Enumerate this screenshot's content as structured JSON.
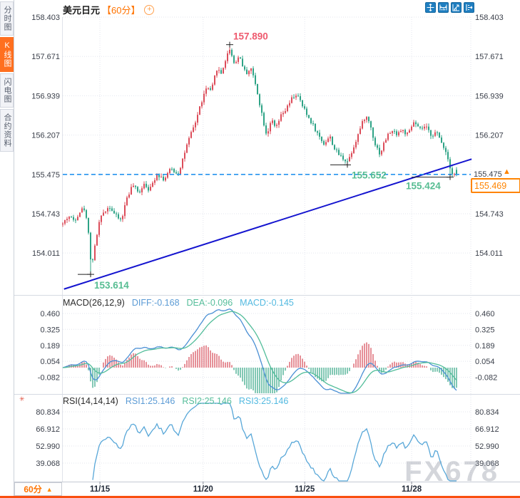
{
  "sidebar": {
    "tabs": [
      {
        "label": "分时图",
        "active": false
      },
      {
        "label": "K线图",
        "active": true
      },
      {
        "label": "闪电图",
        "active": false
      },
      {
        "label": "合约资料",
        "active": false
      }
    ]
  },
  "header": {
    "title": "美元日元",
    "interval_tag": "【60分】",
    "add_glyph": "+"
  },
  "toolbar": {
    "icons": [
      "pan-icon",
      "fit-horizontal-icon",
      "fit-vertical-icon",
      "exit-chart-icon"
    ]
  },
  "price_box": {
    "axis_price": "155.475",
    "arrow": "▲",
    "last_price": "155.469"
  },
  "footer": {
    "interval_button": {
      "label": "60分",
      "arrow": "▲"
    },
    "watermark": "FX678"
  },
  "chart_data": {
    "type": "candlestick",
    "symbol": "美元日元",
    "interval": "60分",
    "price_axis_ticks": [
      "158.403",
      "157.671",
      "156.939",
      "156.207",
      "155.475",
      "154.743",
      "154.011"
    ],
    "ylim": [
      153.25,
      158.45
    ],
    "x_axis_labels": [
      {
        "label": "11/15",
        "pos": 0.091
      },
      {
        "label": "11/20",
        "pos": 0.344
      },
      {
        "label": "11/25",
        "pos": 0.593
      },
      {
        "label": "11/28",
        "pos": 0.855
      }
    ],
    "last_price": 155.469,
    "support_line": {
      "price": 155.475,
      "style": "dashed"
    },
    "trend_line": {
      "t1": 0.003,
      "price1": 153.34,
      "t2": 1.002,
      "price2": 155.76
    },
    "annotations": [
      {
        "kind": "low",
        "label": "153.614",
        "price": 153.614,
        "t": 0.072
      },
      {
        "kind": "high",
        "label": "157.890",
        "price": 157.89,
        "t": 0.424
      },
      {
        "kind": "low",
        "label": "155.652",
        "price": 155.652,
        "t": 0.724
      },
      {
        "kind": "low",
        "label": "155.424",
        "price": 155.424,
        "t": 0.985
      }
    ],
    "price_path": [
      [
        0,
        154.55
      ],
      [
        0.014,
        154.7
      ],
      [
        0.029,
        154.62
      ],
      [
        0.043,
        154.78
      ],
      [
        0.054,
        154.85
      ],
      [
        0.065,
        154.45
      ],
      [
        0.072,
        153.75
      ],
      [
        0.08,
        154.05
      ],
      [
        0.091,
        154.55
      ],
      [
        0.105,
        154.8
      ],
      [
        0.12,
        154.88
      ],
      [
        0.134,
        154.7
      ],
      [
        0.149,
        154.62
      ],
      [
        0.163,
        155.05
      ],
      [
        0.178,
        155.28
      ],
      [
        0.192,
        155.12
      ],
      [
        0.207,
        155.32
      ],
      [
        0.221,
        155.18
      ],
      [
        0.239,
        155.5
      ],
      [
        0.257,
        155.38
      ],
      [
        0.275,
        155.58
      ],
      [
        0.293,
        155.48
      ],
      [
        0.308,
        155.85
      ],
      [
        0.322,
        156.15
      ],
      [
        0.337,
        156.45
      ],
      [
        0.351,
        156.8
      ],
      [
        0.366,
        157.1
      ],
      [
        0.377,
        157.0
      ],
      [
        0.391,
        157.45
      ],
      [
        0.402,
        157.35
      ],
      [
        0.413,
        157.6
      ],
      [
        0.424,
        157.82
      ],
      [
        0.435,
        157.55
      ],
      [
        0.449,
        157.68
      ],
      [
        0.464,
        157.35
      ],
      [
        0.478,
        157.45
      ],
      [
        0.493,
        157.05
      ],
      [
        0.507,
        156.55
      ],
      [
        0.518,
        156.2
      ],
      [
        0.529,
        156.5
      ],
      [
        0.54,
        156.32
      ],
      [
        0.554,
        156.55
      ],
      [
        0.569,
        156.7
      ],
      [
        0.583,
        156.9
      ],
      [
        0.594,
        156.97
      ],
      [
        0.605,
        156.8
      ],
      [
        0.62,
        156.58
      ],
      [
        0.634,
        156.42
      ],
      [
        0.649,
        156.2
      ],
      [
        0.663,
        156.05
      ],
      [
        0.678,
        156.18
      ],
      [
        0.692,
        155.92
      ],
      [
        0.707,
        155.8
      ],
      [
        0.724,
        155.72
      ],
      [
        0.739,
        156.0
      ],
      [
        0.754,
        156.3
      ],
      [
        0.768,
        156.56
      ],
      [
        0.779,
        156.45
      ],
      [
        0.793,
        156.05
      ],
      [
        0.806,
        155.85
      ],
      [
        0.819,
        156.12
      ],
      [
        0.833,
        156.28
      ],
      [
        0.848,
        156.24
      ],
      [
        0.862,
        156.3
      ],
      [
        0.877,
        156.2
      ],
      [
        0.891,
        156.45
      ],
      [
        0.906,
        156.3
      ],
      [
        0.92,
        156.36
      ],
      [
        0.935,
        156.22
      ],
      [
        0.949,
        156.25
      ],
      [
        0.96,
        156.1
      ],
      [
        0.971,
        155.95
      ],
      [
        0.98,
        155.72
      ],
      [
        0.989,
        155.5
      ],
      [
        1,
        155.469
      ]
    ],
    "macd": {
      "title": "MACD(26,12,9)",
      "diff_label": "DIFF:-0.168",
      "dea_label": "DEA:-0.096",
      "macd_label": "MACD:-0.145",
      "params": [
        26,
        12,
        9
      ],
      "current": {
        "diff": -0.168,
        "dea": -0.096,
        "macd": -0.145
      },
      "axis_ticks": [
        "0.460",
        "0.325",
        "0.189",
        "0.054",
        "-0.082"
      ]
    },
    "rsi": {
      "title": "RSI(14,14,14)",
      "labels": [
        "RSI1:25.146",
        "RSI2:25.146",
        "RSI3:25.146"
      ],
      "params": [
        14,
        14,
        14
      ],
      "current": {
        "rsi1": 25.146,
        "rsi2": 25.146,
        "rsi3": 25.146
      },
      "axis_ticks": [
        "80.834",
        "66.912",
        "52.990",
        "39.068"
      ]
    },
    "colors": {
      "up_candle": "#dc4d5a",
      "down_candle": "#2ea386",
      "annotation_high": "#ee5a6e",
      "annotation_low": "#57bd92",
      "support_line": "#2493ee",
      "trend_line": "#1414cf",
      "diff_line": "#4a8fd4",
      "dea_line": "#52bd9a",
      "macd_bar_pos": "#d9505c",
      "macd_bar_neg": "#3aa98a",
      "rsi_line": "#58a7d8",
      "accent_orange": "#ff7300",
      "toolbar_blue": "#1f7ec0",
      "watermark": "#9aa0ab"
    }
  }
}
